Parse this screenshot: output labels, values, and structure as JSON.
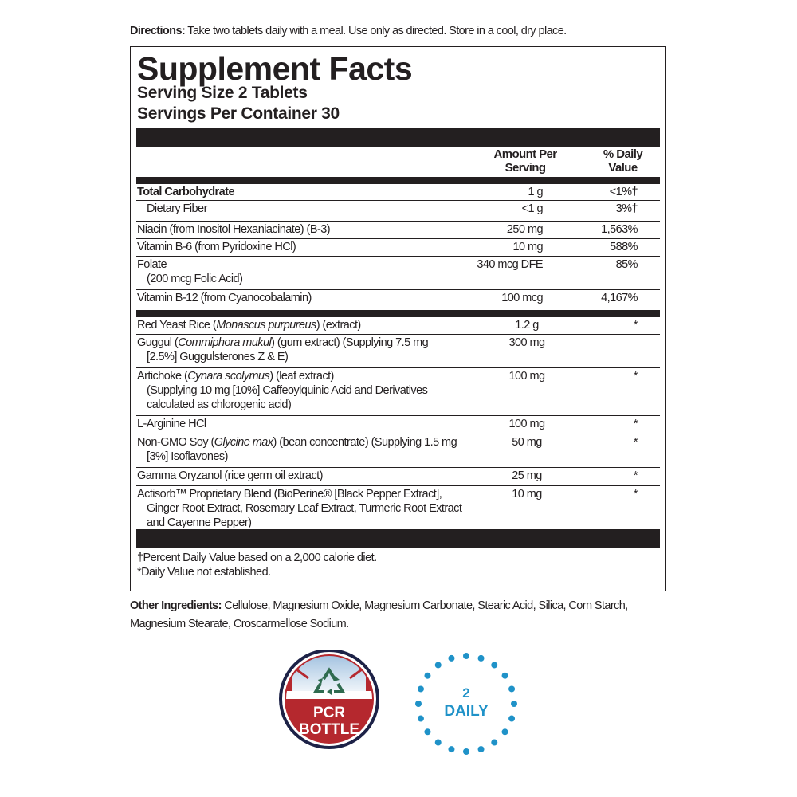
{
  "directions": {
    "label": "Directions:",
    "text": " Take two tablets daily with a meal. Use only as directed. Store in a cool, dry place."
  },
  "panel": {
    "title": "Supplement Facts",
    "serving_size": "Serving Size 2 Tablets",
    "servings_per_container": "Servings Per Container 30",
    "header_amount": [
      "Amount Per",
      "Serving"
    ],
    "header_dv": [
      "% Daily",
      "Value"
    ],
    "rows": [
      {
        "h": 21,
        "bold": true,
        "lines": [
          [
            {
              "t": "Total Carbohydrate"
            }
          ]
        ],
        "amount": "1 g",
        "dv": "<1%†"
      },
      {
        "h": 26,
        "indent": true,
        "lines": [
          [
            {
              "t": "Dietary Fiber"
            }
          ]
        ],
        "amount": "<1 g",
        "dv": "3%†"
      },
      {
        "h": 22,
        "lines": [
          [
            {
              "t": "Niacin (from Inositol Hexaniacinate) (B-3)"
            }
          ]
        ],
        "amount": "250 mg",
        "dv": "1,563%"
      },
      {
        "h": 22,
        "lines": [
          [
            {
              "t": "Vitamin B-6 (from Pyridoxine HCl)"
            }
          ]
        ],
        "amount": "10 mg",
        "dv": "588%"
      },
      {
        "h": 42,
        "lines": [
          [
            {
              "t": "Folate"
            }
          ],
          [
            {
              "t": "(200 mcg Folic Acid)",
              "ind": true
            }
          ]
        ],
        "amount": "340 mcg DFE",
        "dv": "85%"
      },
      {
        "h": 26,
        "thick": true,
        "lines": [
          [
            {
              "t": "Vitamin B-12 (from Cyanocobalamin)"
            }
          ]
        ],
        "amount": "100 mcg",
        "dv": "4,167%"
      },
      {
        "h": 22,
        "lines": [
          [
            {
              "t": "Red Yeast Rice ("
            },
            {
              "t": "Monascus purpureus",
              "i": true
            },
            {
              "t": ") (extract)"
            }
          ]
        ],
        "amount": "1.2 g",
        "dv": "*"
      },
      {
        "h": 42,
        "lines": [
          [
            {
              "t": "Guggul ("
            },
            {
              "t": "Commiphora mukul",
              "i": true
            },
            {
              "t": ") (gum extract) (Supplying 7.5 mg"
            }
          ],
          [
            {
              "t": "[2.5%] Guggulsterones Z & E)",
              "ind": true
            }
          ]
        ],
        "amount": "300 mg",
        "dv": ""
      },
      {
        "h": 60,
        "lines": [
          [
            {
              "t": "Artichoke ("
            },
            {
              "t": "Cynara scolymus",
              "i": true
            },
            {
              "t": ") (leaf extract)"
            }
          ],
          [
            {
              "t": "(Supplying 10 mg [10%] Caffeoylquinic Acid and Derivatives",
              "ind": true
            }
          ],
          [
            {
              "t": "calculated as chlorogenic acid)",
              "ind": true
            }
          ]
        ],
        "amount": "100 mg",
        "dv": "*"
      },
      {
        "h": 23,
        "lines": [
          [
            {
              "t": "L-Arginine HCl"
            }
          ]
        ],
        "amount": "100 mg",
        "dv": "*"
      },
      {
        "h": 42,
        "lines": [
          [
            {
              "t": "Non-GMO Soy ("
            },
            {
              "t": "Glycine max",
              "i": true
            },
            {
              "t": ") (bean concentrate) (Supplying 1.5 mg"
            }
          ],
          [
            {
              "t": "[3%] Isoflavones)",
              "ind": true
            }
          ]
        ],
        "amount": "50 mg",
        "dv": "*"
      },
      {
        "h": 23,
        "lines": [
          [
            {
              "t": "Gamma Oryzanol (rice germ oil extract)"
            }
          ]
        ],
        "amount": "25 mg",
        "dv": "*"
      },
      {
        "h": 58,
        "nob": true,
        "lines": [
          [
            {
              "t": "Actisorb™ Proprietary Blend (BioPerine® [Black Pepper Extract],"
            }
          ],
          [
            {
              "t": "Ginger Root Extract, Rosemary Leaf Extract, Turmeric Root Extract",
              "ind": true
            }
          ],
          [
            {
              "t": "and Cayenne Pepper)",
              "ind": true
            }
          ]
        ],
        "amount": "10 mg",
        "dv": "*"
      }
    ],
    "footnotes": [
      "†Percent Daily Value based on a 2,000 calorie diet.",
      "*Daily Value not established."
    ]
  },
  "other_ingredients": {
    "label": "Other Ingredients:",
    "text": " Cellulose, Magnesium Oxide, Magnesium Carbonate, Stearic Acid, Silica, Corn Starch, Magnesium Stearate, Croscarmellose Sodium."
  },
  "badges": {
    "pcr": {
      "line1": "PCR",
      "line2": "BOTTLE",
      "icon": "recycle-icon"
    },
    "daily": {
      "number": "2",
      "label": "DAILY"
    }
  },
  "colors": {
    "text": "#231f20",
    "pcr_red": "#b5282e",
    "pcr_navy": "#1d2247",
    "recycle_green": "#2f6b4f",
    "daily_blue": "#1f92c8"
  }
}
